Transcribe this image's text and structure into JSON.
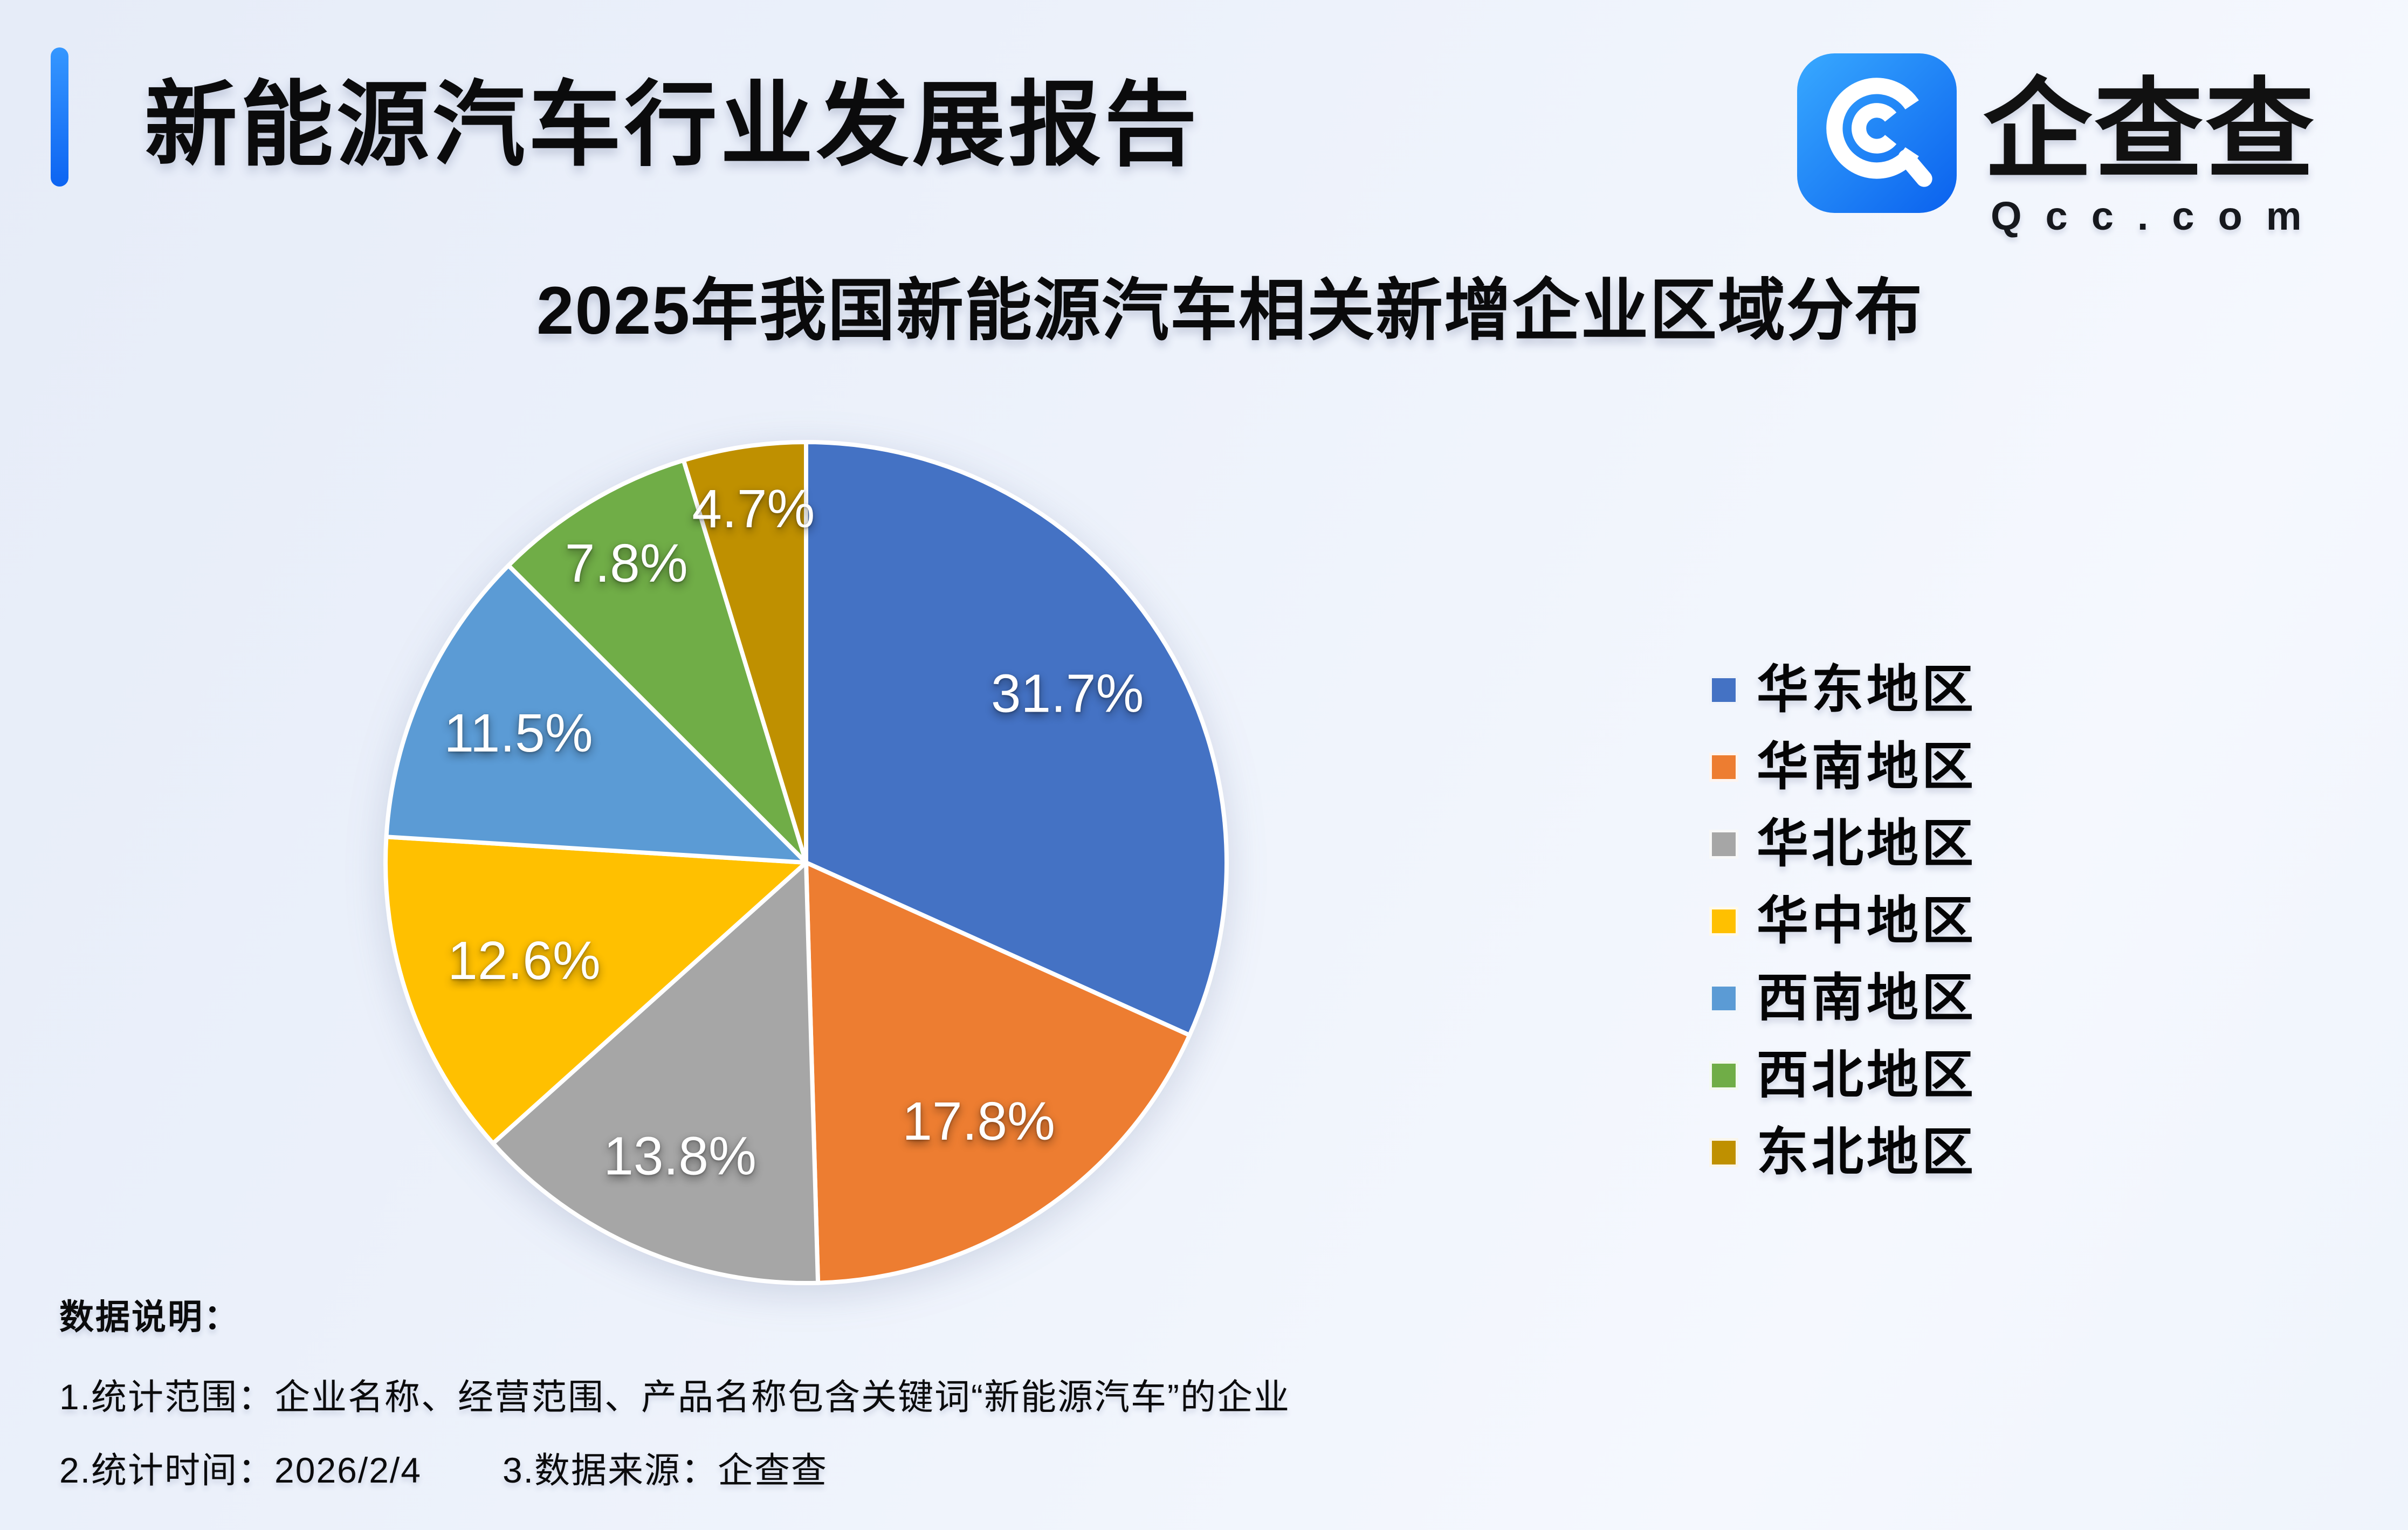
{
  "page": {
    "title": "新能源汽车行业发展报告"
  },
  "brand": {
    "name": "企查查",
    "domain": "Qcc.com",
    "icon": "qcc-magnifier-icon",
    "icon_gradient": [
      "#38a9ff",
      "#0a61ee"
    ]
  },
  "chart_data": {
    "type": "pie",
    "title": "2025年我国新能源汽车相关新增企业区域分布",
    "categories": [
      "华东地区",
      "华南地区",
      "华北地区",
      "华中地区",
      "西南地区",
      "西北地区",
      "东北地区"
    ],
    "values": [
      31.7,
      17.8,
      13.8,
      12.6,
      11.5,
      7.8,
      4.7
    ],
    "labels": [
      "31.7%",
      "17.8%",
      "13.8%",
      "12.6%",
      "11.5%",
      "7.8%",
      "4.7%"
    ],
    "colors": [
      "#4472C4",
      "#ED7D31",
      "#A6A6A6",
      "#FFC000",
      "#5B9BD5",
      "#70AD47",
      "#BF9000"
    ],
    "unit": "%",
    "start_angle_deg": 0,
    "direction": "clockwise",
    "legend_position": "right",
    "label_color": "#ffffff",
    "label_radius": [
      0.74,
      0.74,
      0.76,
      0.71,
      0.75,
      0.83,
      0.85
    ],
    "slice_border_color": "#ffffff"
  },
  "footer": {
    "heading": "数据说明：",
    "note1": "1.统计范围：企业名称、经营范围、产品名称包含关键词“新能源汽车”的企业",
    "note2a": "2.统计时间：2026/2/4",
    "note2b": "3.数据来源：企查查"
  }
}
